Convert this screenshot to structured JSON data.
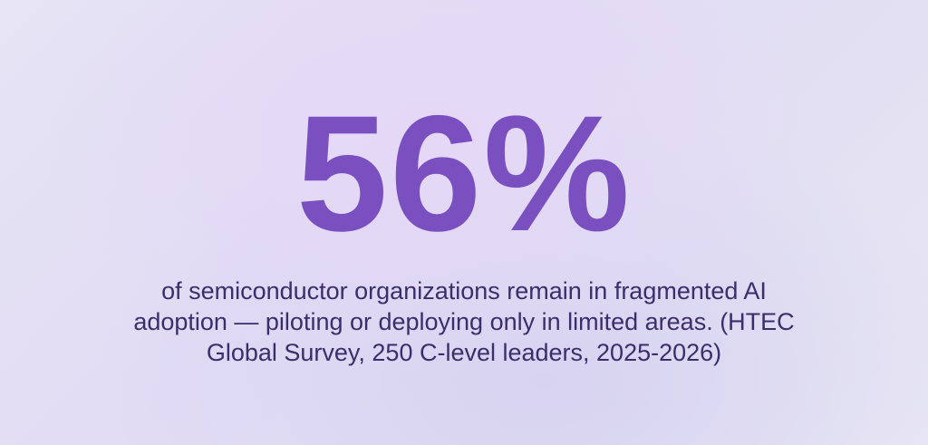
{
  "stat": {
    "value": "56%",
    "color": "#7a4fbf"
  },
  "description": {
    "lines": [
      "of semiconductor organizations remain in fragmented AI",
      "adoption — piloting or deploying only in limited areas. (HTEC",
      "Global Survey, 250 C-level leaders, 2025-2026)"
    ],
    "color": "#3b2e6b"
  }
}
